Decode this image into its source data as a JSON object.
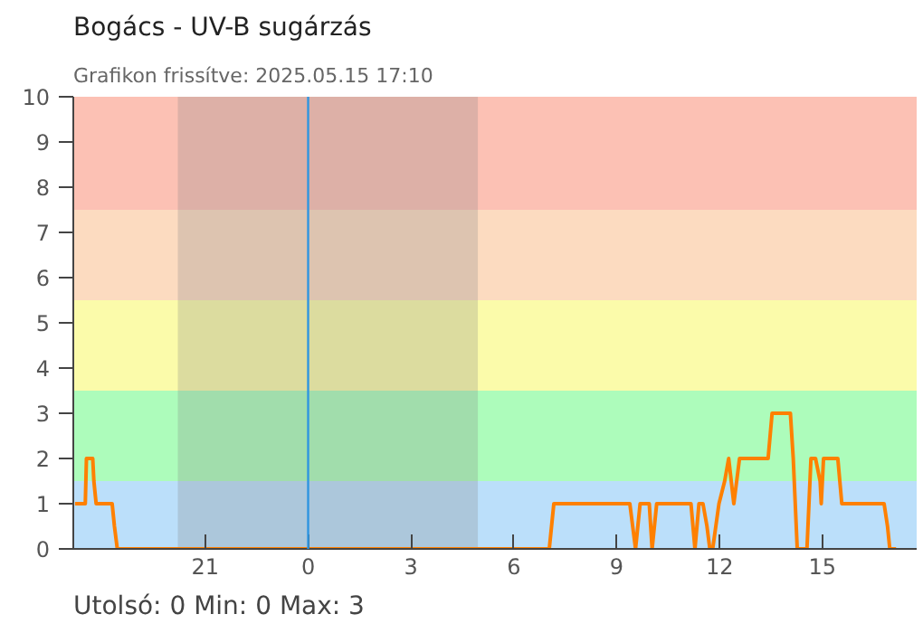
{
  "chart_data": {
    "type": "line",
    "title": "Bogács - UV-B sugárzás",
    "subtitle": "Grafikon frissítve: 2025.05.15 17:10",
    "x": [
      "2025-05-14T17:12",
      "2025-05-14T17:30",
      "2025-05-14T17:32",
      "2025-05-14T17:43",
      "2025-05-14T17:45",
      "2025-05-14T17:49",
      "2025-05-14T18:17",
      "2025-05-14T18:21",
      "2025-05-14T18:26",
      "2025-05-15T07:02",
      "2025-05-15T07:10",
      "2025-05-15T09:23",
      "2025-05-15T09:33",
      "2025-05-15T09:41",
      "2025-05-15T09:57",
      "2025-05-15T10:02",
      "2025-05-15T10:10",
      "2025-05-15T11:10",
      "2025-05-15T11:17",
      "2025-05-15T11:24",
      "2025-05-15T11:31",
      "2025-05-15T11:38",
      "2025-05-15T11:43",
      "2025-05-15T11:48",
      "2025-05-15T11:59",
      "2025-05-15T12:09",
      "2025-05-15T12:16",
      "2025-05-15T12:25",
      "2025-05-15T12:35",
      "2025-05-15T13:25",
      "2025-05-15T13:32",
      "2025-05-15T14:04",
      "2025-05-15T14:09",
      "2025-05-15T14:16",
      "2025-05-15T14:33",
      "2025-05-15T14:40",
      "2025-05-15T14:48",
      "2025-05-15T14:56",
      "2025-05-15T14:58",
      "2025-05-15T15:02",
      "2025-05-15T15:27",
      "2025-05-15T15:34",
      "2025-05-15T16:48",
      "2025-05-15T16:54",
      "2025-05-15T16:58",
      "2025-05-15T17:09"
    ],
    "series": [
      {
        "color": "#ff8000",
        "values": [
          1,
          1,
          2,
          2,
          1.5,
          1,
          1,
          0.5,
          0,
          0,
          1,
          1,
          0,
          1,
          1,
          0,
          1,
          1,
          0,
          1,
          1,
          0.5,
          0,
          0,
          1,
          1.5,
          2,
          1,
          2,
          2,
          3,
          3,
          2,
          0,
          0,
          2,
          2,
          1.5,
          1,
          2,
          2,
          1,
          1,
          0.5,
          0,
          0
        ]
      }
    ],
    "xlim": [
      "2025-05-14T17:09",
      "2025-05-15T17:45"
    ],
    "ylim": [
      0,
      10
    ],
    "xticks": [
      {
        "value": "2025-05-14T21:00",
        "label": "21"
      },
      {
        "value": "2025-05-15T00:00",
        "label": "0"
      },
      {
        "value": "2025-05-15T03:00",
        "label": "3"
      },
      {
        "value": "2025-05-15T06:00",
        "label": "6"
      },
      {
        "value": "2025-05-15T09:00",
        "label": "9"
      },
      {
        "value": "2025-05-15T12:00",
        "label": "12"
      },
      {
        "value": "2025-05-15T15:00",
        "label": "15"
      }
    ],
    "yticks": [
      0,
      1,
      2,
      3,
      4,
      5,
      6,
      7,
      8,
      9,
      10
    ],
    "bands": [
      {
        "axis": "y",
        "from": 0,
        "to": 1.5,
        "color": "#bbdffa"
      },
      {
        "axis": "y",
        "from": 1.5,
        "to": 3.5,
        "color": "#adfcbb"
      },
      {
        "axis": "y",
        "from": 3.5,
        "to": 5.5,
        "color": "#fbfbaa"
      },
      {
        "axis": "y",
        "from": 5.5,
        "to": 7.5,
        "color": "#fcdbc0"
      },
      {
        "axis": "y",
        "from": 7.5,
        "to": 10,
        "color": "#fcc1b4"
      },
      {
        "axis": "x",
        "from": "2025-05-14T20:12",
        "to": "2025-05-15T04:57",
        "color": "#7f7f7f"
      }
    ],
    "ref_lines": [
      {
        "axis": "x",
        "value": "2025-05-15T00:00",
        "color": "#2f95e0"
      }
    ],
    "annotations": [
      "Utolsó: 0  Min: 0  Max: 3"
    ]
  }
}
